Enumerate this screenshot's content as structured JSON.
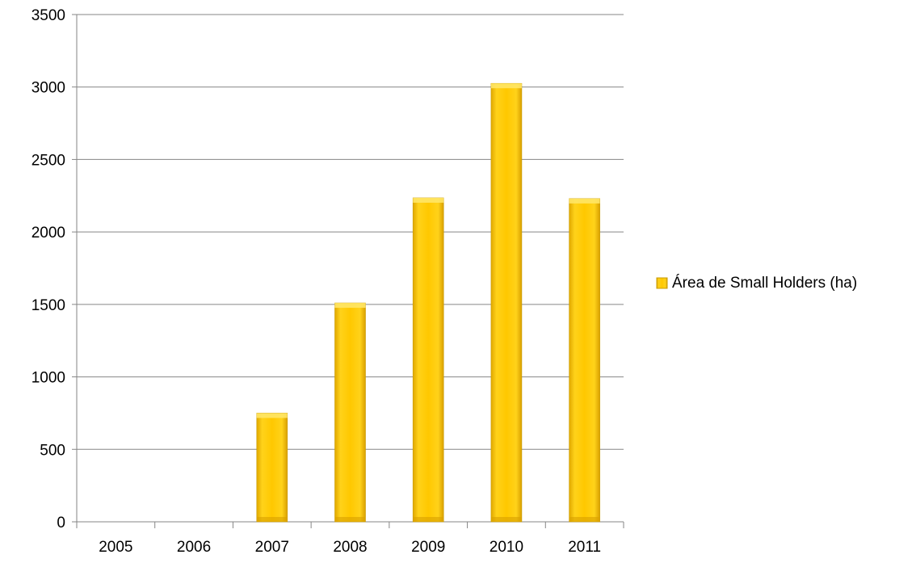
{
  "chart_data": {
    "type": "bar",
    "categories": [
      "2005",
      "2006",
      "2007",
      "2008",
      "2009",
      "2010",
      "2011"
    ],
    "series": [
      {
        "name": "Área de Small Holders (ha)",
        "values": [
          0,
          0,
          750,
          1510,
          2235,
          3025,
          2230
        ]
      }
    ],
    "title": "",
    "xlabel": "",
    "ylabel": "",
    "ylim": [
      0,
      3500
    ],
    "yticks": [
      "0",
      "500",
      "1000",
      "1500",
      "2000",
      "2500",
      "3000",
      "3500"
    ],
    "grid": true,
    "legend": "right",
    "colors": {
      "bar": "#FFC800",
      "bar_edge": "#C89B00",
      "grid": "#868686",
      "axis": "#868686"
    }
  }
}
